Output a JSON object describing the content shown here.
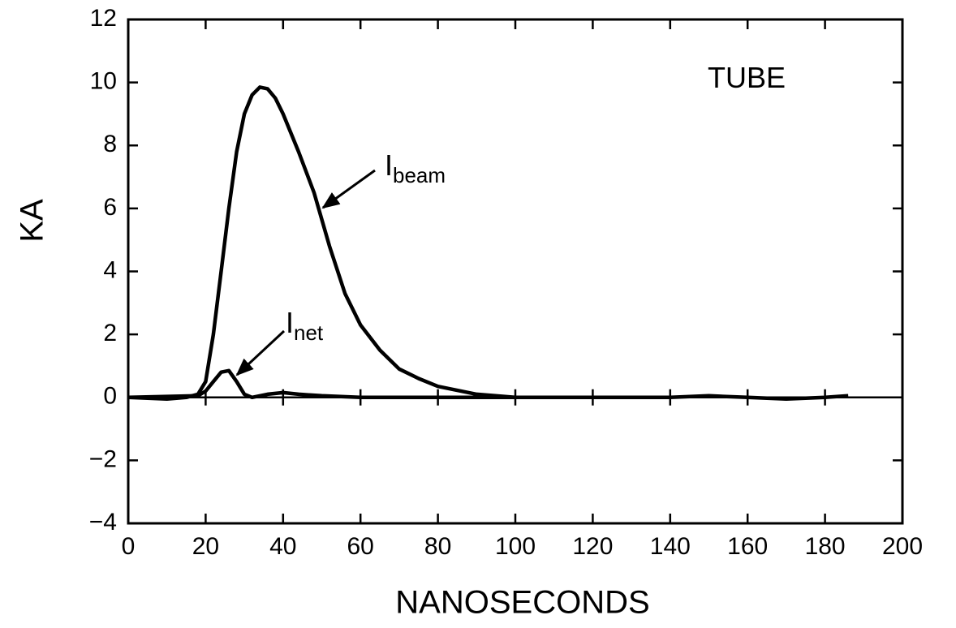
{
  "chart_data": {
    "type": "line",
    "xlabel": "NANOSECONDS",
    "ylabel": "KA",
    "annotations": [
      {
        "text": "TUBE"
      },
      {
        "text": "I",
        "sub": "beam"
      },
      {
        "text": "I",
        "sub": "net"
      }
    ],
    "series": [
      {
        "color": "#000000",
        "x": [
          0,
          10,
          15,
          18,
          20,
          22,
          24,
          26,
          28,
          30,
          32,
          34,
          36,
          38,
          40,
          44,
          48,
          52,
          56,
          60,
          65,
          70,
          75,
          80,
          90,
          100,
          120,
          140,
          150,
          160,
          170,
          180,
          186
        ],
        "values": [
          0,
          -0.05,
          0,
          0.1,
          0.5,
          2,
          4,
          6,
          7.8,
          9,
          9.6,
          9.85,
          9.8,
          9.5,
          9,
          7.8,
          6.5,
          4.8,
          3.3,
          2.3,
          1.5,
          0.9,
          0.6,
          0.35,
          0.1,
          0,
          0,
          0,
          0.05,
          0,
          -0.05,
          0,
          0.05
        ]
      },
      {
        "color": "#000000",
        "x": [
          0,
          18,
          20,
          22,
          24,
          26,
          28,
          30,
          32,
          36,
          40,
          44,
          50,
          60,
          100
        ],
        "values": [
          0,
          0.05,
          0.2,
          0.5,
          0.8,
          0.85,
          0.5,
          0.1,
          0,
          0.1,
          0.15,
          0.1,
          0.05,
          0,
          0
        ]
      }
    ],
    "xlim": [
      0,
      200
    ],
    "xticks": [
      0,
      20,
      40,
      60,
      80,
      100,
      120,
      140,
      160,
      180,
      200
    ],
    "ylim": [
      -4,
      12
    ],
    "yticks": [
      {
        "value": -4,
        "label": "−4"
      },
      {
        "value": -2,
        "label": "−2"
      },
      0,
      2,
      4,
      6,
      8,
      10,
      12
    ],
    "zero_line": true
  }
}
